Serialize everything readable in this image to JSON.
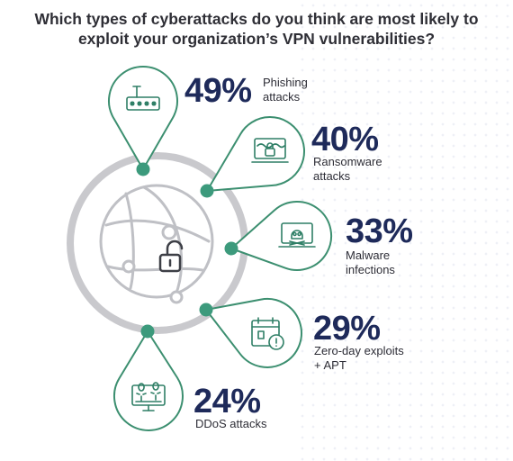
{
  "title": {
    "line1": "Which types of cyberattacks do you think are most likely to",
    "line2": "exploit your organization’s VPN vulnerabilities?"
  },
  "colors": {
    "accent": "#3c9a7c",
    "ring": "#c8c8cc",
    "percent_text": "#1e2a5a",
    "icon_stroke": "#2f7f66",
    "pin_stroke": "#3c8f70"
  },
  "chart_data": {
    "type": "bar",
    "title": "Which types of cyberattacks do you think are most likely to exploit your organization’s VPN vulnerabilities?",
    "categories": [
      "Phishing attacks",
      "Ransomware attacks",
      "Malware infections",
      "Zero-day exploits + APT",
      "DDoS attacks"
    ],
    "values": [
      49,
      40,
      33,
      29,
      24
    ],
    "unit": "%"
  },
  "items": [
    {
      "percent": "49%",
      "label_lines": [
        "Phishing",
        "attacks"
      ],
      "icon": "password-field-icon"
    },
    {
      "percent": "40%",
      "label_lines": [
        "Ransomware",
        "attacks"
      ],
      "icon": "locked-laptop-icon"
    },
    {
      "percent": "33%",
      "label_lines": [
        "Malware",
        "infections"
      ],
      "icon": "skull-laptop-icon"
    },
    {
      "percent": "29%",
      "label_lines": [
        "Zero-day exploits",
        "+ APT"
      ],
      "icon": "calendar-alert-icon"
    },
    {
      "percent": "24%",
      "label_lines": [
        "DDoS attacks"
      ],
      "icon": "bug-monitor-icon"
    }
  ],
  "center_icon": "globe-with-unlocked-padlock-icon"
}
